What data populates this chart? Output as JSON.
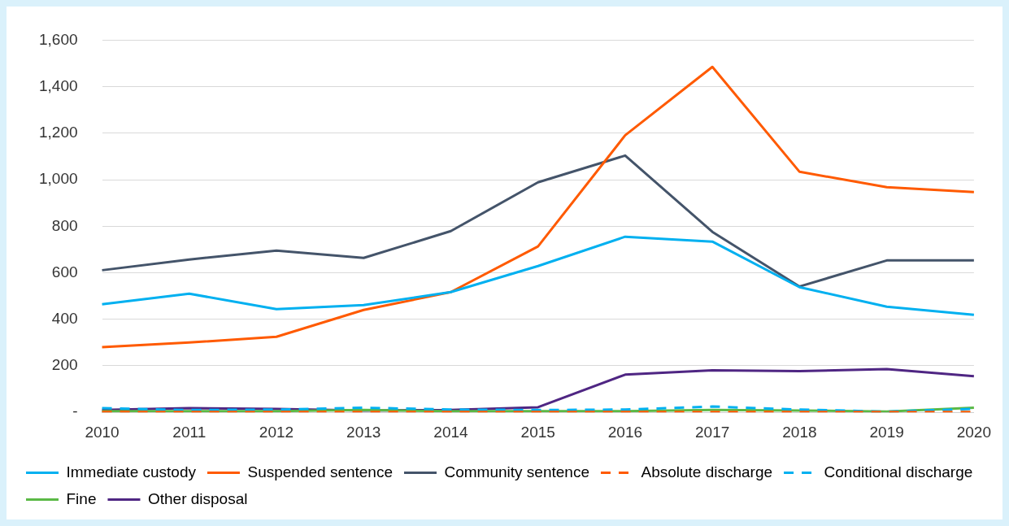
{
  "chart_data": {
    "type": "line",
    "categories": [
      "2010",
      "2011",
      "2012",
      "2013",
      "2014",
      "2015",
      "2016",
      "2017",
      "2018",
      "2019",
      "2020"
    ],
    "ylim": [
      0,
      1600
    ],
    "yticks": [
      {
        "value": 0,
        "label": "-"
      },
      {
        "value": 200,
        "label": "200"
      },
      {
        "value": 400,
        "label": "400"
      },
      {
        "value": 600,
        "label": "600"
      },
      {
        "value": 800,
        "label": "800"
      },
      {
        "value": 1000,
        "label": "1,000"
      },
      {
        "value": 1200,
        "label": "1,200"
      },
      {
        "value": 1400,
        "label": "1,400"
      },
      {
        "value": 1600,
        "label": "1,600"
      }
    ],
    "grid": "y",
    "legend": "bottom",
    "marker": "none",
    "series": [
      {
        "name": "Immediate custody",
        "color": "#00b0f0",
        "values": [
          465,
          510,
          444,
          461,
          517,
          629,
          755,
          734,
          538,
          454,
          419
        ]
      },
      {
        "name": "Suspended sentence",
        "color": "#ff5a00",
        "values": [
          280,
          300,
          325,
          440,
          517,
          713,
          1191,
          1485,
          1034,
          968,
          947
        ]
      },
      {
        "name": "Community sentence",
        "color": "#44546a",
        "values": [
          611,
          657,
          695,
          664,
          779,
          989,
          1104,
          776,
          541,
          653,
          653
        ]
      },
      {
        "name": "Absolute discharge",
        "color": "#ff5a00",
        "line_style": "dashed",
        "values": [
          2,
          2,
          2,
          2,
          2,
          2,
          2,
          2,
          2,
          2,
          2
        ]
      },
      {
        "name": "Conditional discharge",
        "color": "#00b0f0",
        "line_style": "dashed",
        "values": [
          18,
          10,
          12,
          20,
          12,
          10,
          12,
          25,
          12,
          3,
          15
        ]
      },
      {
        "name": "Fine",
        "color": "#5bb946",
        "values": [
          5,
          5,
          5,
          10,
          5,
          5,
          5,
          10,
          8,
          3,
          20
        ]
      },
      {
        "name": "Other disposal",
        "color": "#4f2683",
        "values": [
          10,
          18,
          15,
          8,
          10,
          22,
          162,
          181,
          177,
          186,
          155
        ]
      }
    ]
  }
}
